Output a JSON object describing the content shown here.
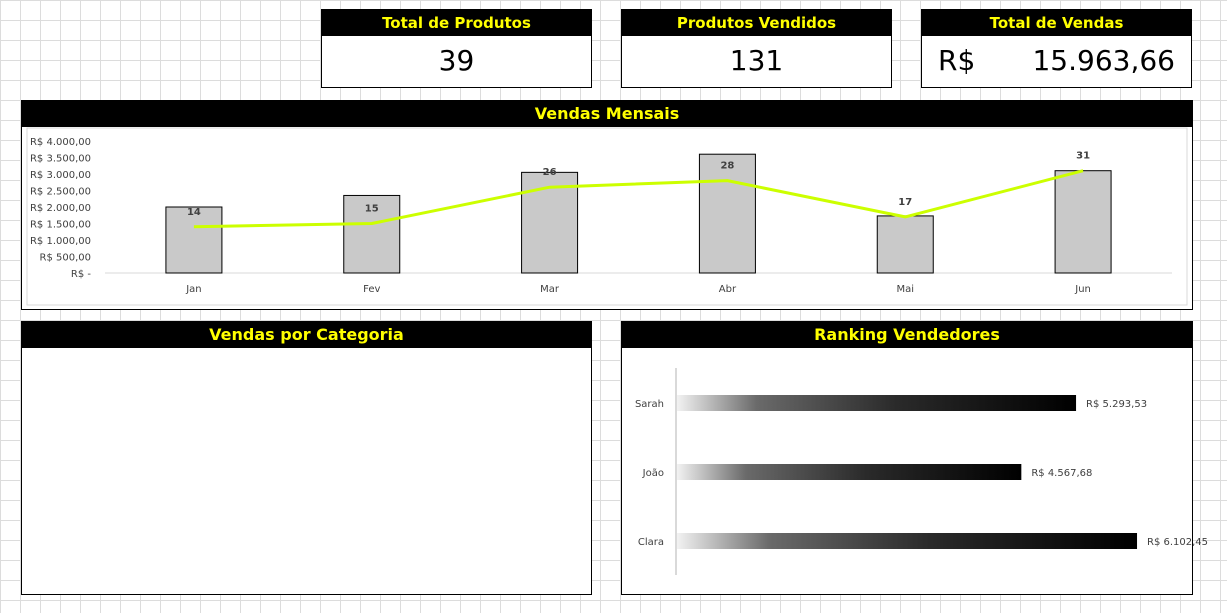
{
  "kpis": {
    "total_produtos": {
      "title": "Total de Produtos",
      "value": "39"
    },
    "produtos_vendidos": {
      "title": "Produtos Vendidos",
      "value": "131"
    },
    "total_vendas": {
      "title": "Total de Vendas",
      "currency": "R$",
      "value": "15.963,66"
    }
  },
  "sections": {
    "monthly": "Vendas Mensais",
    "category": "Vendas por Categoria",
    "ranking": "Ranking Vendedores"
  },
  "colors": {
    "header_bg": "#000000",
    "header_text": "#ffff00",
    "line": "#ccff00",
    "bar": "#c9c9c9"
  },
  "chart_data": [
    {
      "type": "bar",
      "title": "Vendas Mensais",
      "categories": [
        "Jan",
        "Fev",
        "Mar",
        "Abr",
        "Mai",
        "Jun"
      ],
      "series": [
        {
          "values": [
            2000,
            2350,
            3050,
            3600,
            1730,
            3100
          ]
        },
        {
          "values": [
            14,
            15,
            26,
            28,
            17,
            31
          ]
        }
      ],
      "yticks": [
        "R$ -",
        "R$ 500,00",
        "R$ 1.000,00",
        "R$ 1.500,00",
        "R$ 2.000,00",
        "R$ 2.500,00",
        "R$ 3.000,00",
        "R$ 3.500,00",
        "R$ 4.000,00"
      ],
      "ylim": [
        0,
        4000
      ],
      "line_ylim": [
        0,
        40
      ],
      "grid": false
    },
    {
      "type": "bar",
      "title": "Ranking Vendedores",
      "orientation": "horizontal",
      "categories": [
        "Sarah",
        "João",
        "Clara"
      ],
      "values": [
        5293.53,
        4567.68,
        6102.45
      ],
      "labels": [
        "R$ 5.293,53",
        "R$ 4.567,68",
        "R$ 6.102,45"
      ],
      "xlim": [
        0,
        6500
      ]
    }
  ]
}
